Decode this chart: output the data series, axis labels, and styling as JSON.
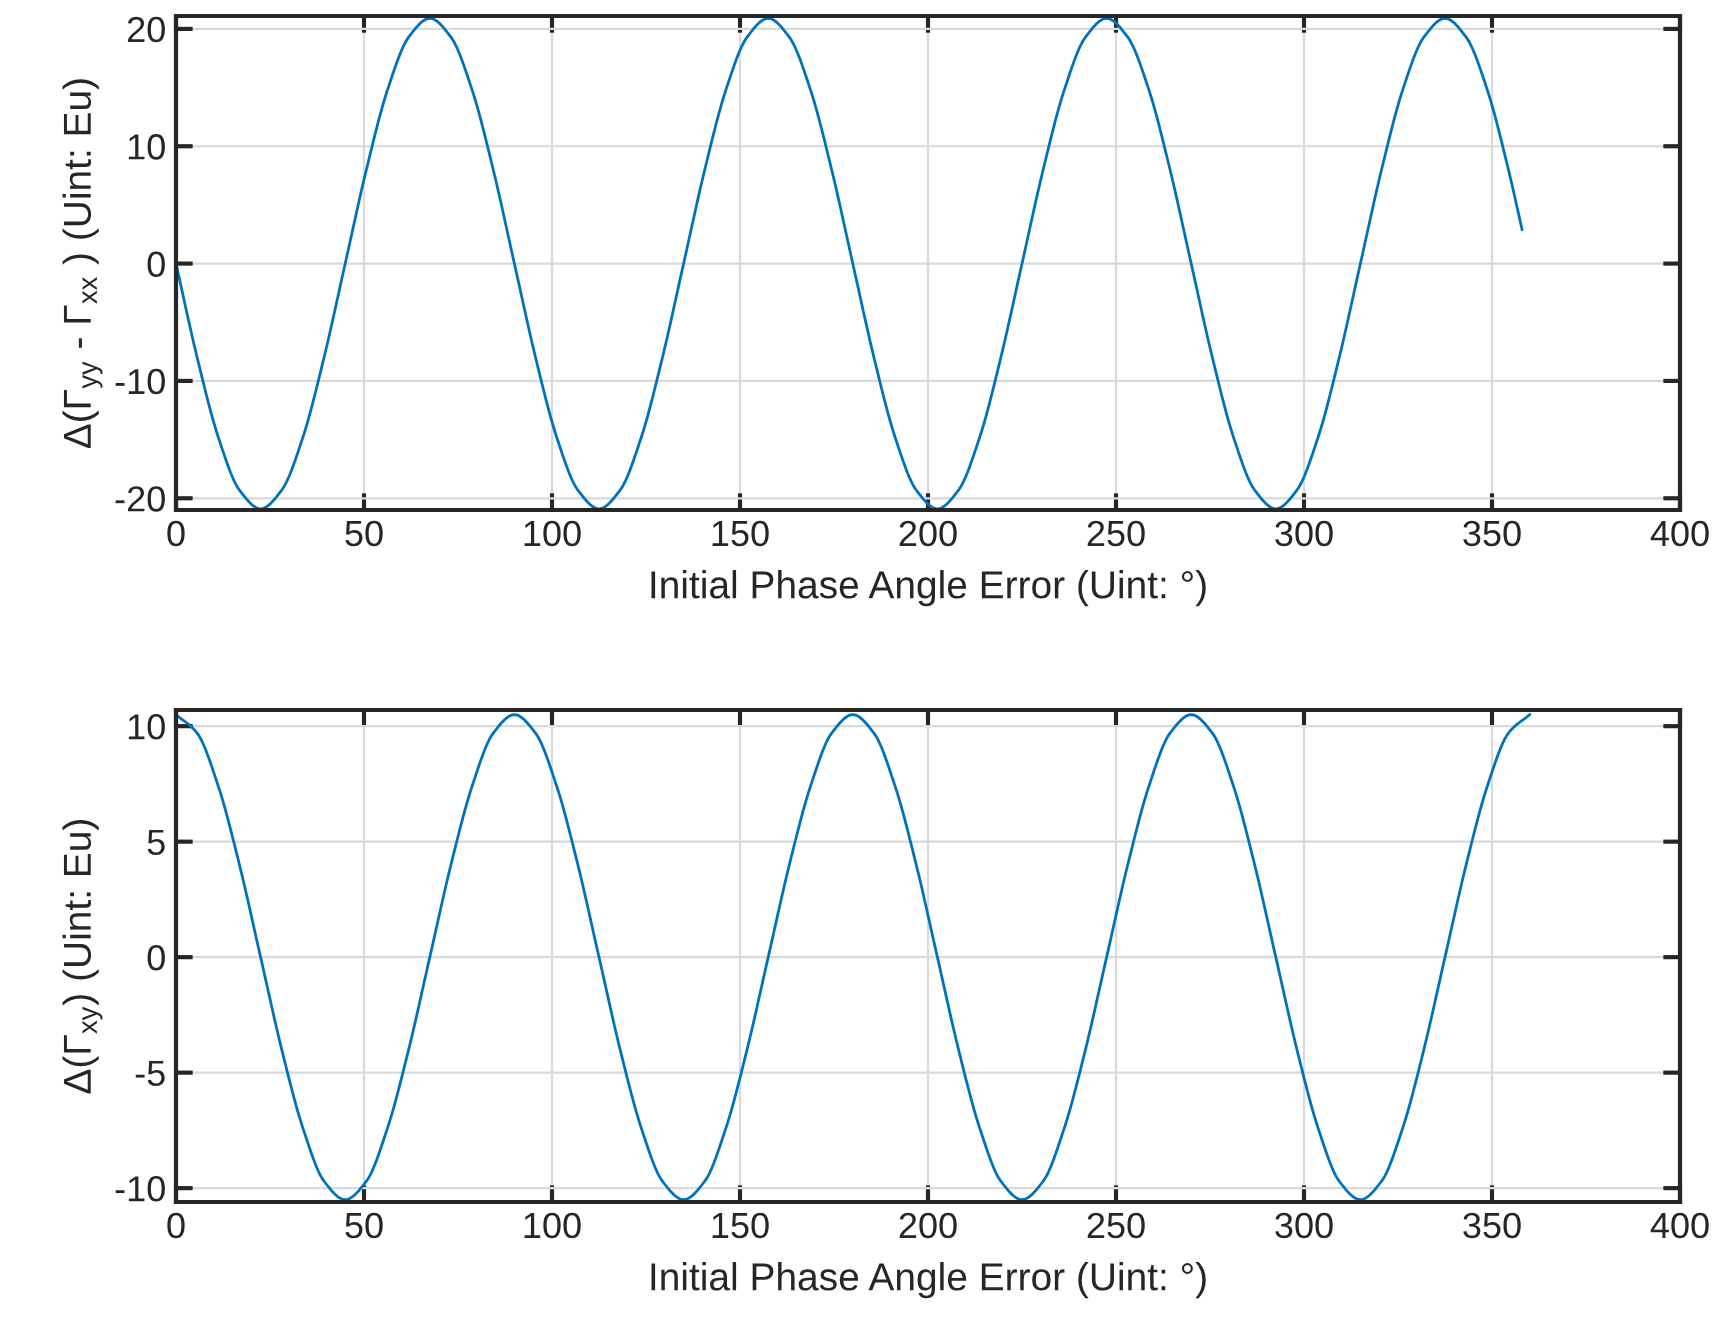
{
  "chart_data": [
    {
      "type": "line",
      "xlabel": "Initial Phase Angle Error (Uint: °)",
      "ylabel": "Δ(Γ$_{yy}$ - Γ$_{xx}$ ) (Uint: Eu)",
      "x": [
        0,
        5.625,
        11.25,
        16.875,
        22.5,
        28.125,
        33.75,
        39.375,
        45,
        50.625,
        56.25,
        61.875,
        67.5,
        73.125,
        78.75,
        84.375,
        90,
        95.625,
        101.25,
        106.875,
        112.5,
        118.125,
        123.75,
        129.375,
        135,
        140.625,
        146.25,
        151.875,
        157.5,
        163.125,
        168.75,
        174.375,
        180,
        185.625,
        191.25,
        196.875,
        202.5,
        208.125,
        213.75,
        219.375,
        225,
        230.625,
        236.25,
        241.875,
        247.5,
        253.125,
        258.75,
        264.375,
        270,
        275.625,
        281.25,
        286.875,
        292.5,
        298.125,
        303.75,
        309.375,
        315,
        320.625,
        326.25,
        331.875,
        337.5,
        343.125,
        348.75,
        354.375,
        358
      ],
      "series": [
        {
          "color": "#0072bd",
          "values": [
            0,
            -8.0,
            -14.8,
            -19.3,
            -20.9,
            -19.3,
            -14.8,
            -8.0,
            0,
            8.0,
            14.8,
            19.3,
            20.9,
            19.3,
            14.8,
            8.0,
            0,
            -8.0,
            -14.8,
            -19.3,
            -20.9,
            -19.3,
            -14.8,
            -8.0,
            0,
            8.0,
            14.8,
            19.3,
            20.9,
            19.3,
            14.8,
            8.0,
            0,
            -8.0,
            -14.8,
            -19.3,
            -20.9,
            -19.3,
            -14.8,
            -8.0,
            0,
            8.0,
            14.8,
            19.3,
            20.9,
            19.3,
            14.8,
            8.0,
            0,
            -8.0,
            -14.8,
            -19.3,
            -20.9,
            -19.3,
            -14.8,
            -8.0,
            0,
            8.0,
            14.8,
            19.3,
            20.9,
            19.3,
            14.8,
            8.0,
            2.9
          ]
        }
      ],
      "xlim": [
        0,
        400
      ],
      "xticks": [
        0,
        50,
        100,
        150,
        200,
        250,
        300,
        350,
        400
      ],
      "ylim": [
        -21,
        21.1
      ],
      "yticks": [
        -20,
        -10,
        0,
        10,
        20
      ],
      "grid": true,
      "marker": "none",
      "line_style": "solid"
    },
    {
      "type": "line",
      "xlabel": "Initial Phase Angle Error (Uint: °)",
      "ylabel": "Δ(Γ$_{xy}$) (Uint: Eu)",
      "x": [
        0,
        5.625,
        11.25,
        16.875,
        22.5,
        28.125,
        33.75,
        39.375,
        45,
        50.625,
        56.25,
        61.875,
        67.5,
        73.125,
        78.75,
        84.375,
        90,
        95.625,
        101.25,
        106.875,
        112.5,
        118.125,
        123.75,
        129.375,
        135,
        140.625,
        146.25,
        151.875,
        157.5,
        163.125,
        168.75,
        174.375,
        180,
        185.625,
        191.25,
        196.875,
        202.5,
        208.125,
        213.75,
        219.375,
        225,
        230.625,
        236.25,
        241.875,
        247.5,
        253.125,
        258.75,
        264.375,
        270,
        275.625,
        281.25,
        286.875,
        292.5,
        298.125,
        303.75,
        309.375,
        315,
        320.625,
        326.25,
        331.875,
        337.5,
        343.125,
        348.75,
        354.375,
        360
      ],
      "series": [
        {
          "color": "#0072bd",
          "values": [
            10.5,
            9.7,
            7.4,
            4.0,
            0,
            -4.0,
            -7.4,
            -9.7,
            -10.5,
            -9.7,
            -7.4,
            -4.0,
            0,
            4.0,
            7.4,
            9.7,
            10.5,
            9.7,
            7.4,
            4.0,
            0,
            -4.0,
            -7.4,
            -9.7,
            -10.5,
            -9.7,
            -7.4,
            -4.0,
            0,
            4.0,
            7.4,
            9.7,
            10.5,
            9.7,
            7.4,
            4.0,
            0,
            -4.0,
            -7.4,
            -9.7,
            -10.5,
            -9.7,
            -7.4,
            -4.0,
            0,
            4.0,
            7.4,
            9.7,
            10.5,
            9.7,
            7.4,
            4.0,
            0,
            -4.0,
            -7.4,
            -9.7,
            -10.5,
            -9.7,
            -7.4,
            -4.0,
            0,
            4.0,
            7.4,
            9.7,
            10.5
          ]
        }
      ],
      "xlim": [
        0,
        400
      ],
      "xticks": [
        0,
        50,
        100,
        150,
        200,
        250,
        300,
        350,
        400
      ],
      "ylim": [
        -10.6,
        10.7
      ],
      "yticks": [
        -10,
        -5,
        0,
        5,
        10
      ],
      "grid": true,
      "marker": "none",
      "line_style": "solid"
    }
  ]
}
